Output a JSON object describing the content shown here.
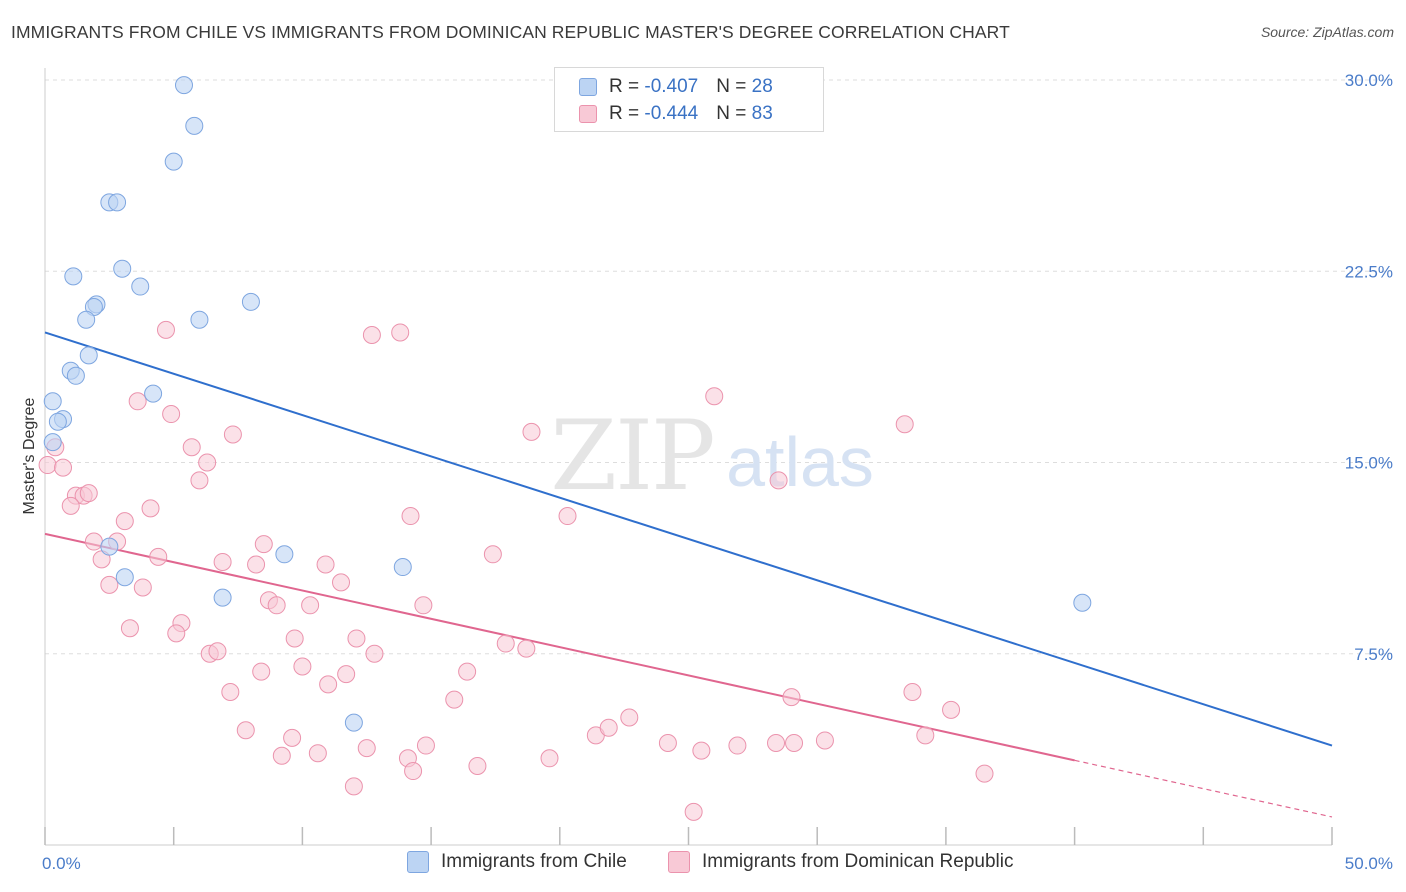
{
  "header": {
    "title": "IMMIGRANTS FROM CHILE VS IMMIGRANTS FROM DOMINICAN REPUBLIC MASTER'S DEGREE CORRELATION CHART",
    "source": "Source: ZipAtlas.com"
  },
  "watermark": {
    "zip": "ZIP",
    "atlas": "atlas"
  },
  "legend": {
    "chile": {
      "r_label": "R = ",
      "r_value": "-0.407",
      "n_label": "N = ",
      "n_value": "28"
    },
    "dominican": {
      "r_label": "R = ",
      "r_value": "-0.444",
      "n_label": "N = ",
      "n_value": "83"
    }
  },
  "bottom_legend": {
    "chile": "Immigrants from Chile",
    "dominican": "Immigrants from Dominican Republic"
  },
  "colors": {
    "chile_fill": "#bcd4f3",
    "chile_stroke": "#7ea6e0",
    "chile_line": "#2f6fcd",
    "dominican_fill": "#f8c9d6",
    "dominican_stroke": "#eb93ad",
    "dominican_line": "#e0668f",
    "grid": "#dddddd",
    "tick_text": "#4a7cc9"
  },
  "chart_data": {
    "type": "scatter",
    "title": "IMMIGRANTS FROM CHILE VS IMMIGRANTS FROM DOMINICAN REPUBLIC MASTER'S DEGREE CORRELATION CHART",
    "xlabel": "",
    "ylabel": "Master's Degree",
    "xlim": [
      0,
      50
    ],
    "ylim": [
      0,
      31
    ],
    "x_tick_labels": [
      {
        "value": 0,
        "label": "0.0%"
      },
      {
        "value": 50,
        "label": "50.0%"
      }
    ],
    "y_tick_labels": [
      {
        "value": 7.5,
        "label": "7.5%"
      },
      {
        "value": 15,
        "label": "15.0%"
      },
      {
        "value": 22.5,
        "label": "22.5%"
      },
      {
        "value": 30,
        "label": "30.0%"
      }
    ],
    "x_minor_ticks": [
      5,
      10,
      15,
      20,
      25,
      30,
      35,
      40,
      45
    ],
    "grid": true,
    "legend_position": "top-center",
    "series": [
      {
        "name": "Immigrants from Chile",
        "R": -0.407,
        "N": 28,
        "trend": {
          "x1": 0,
          "y1": 20.1,
          "x2": 50,
          "y2": 3.9,
          "dash_from_x": null
        },
        "points": [
          [
            5.4,
            29.8
          ],
          [
            5.8,
            28.2
          ],
          [
            5.0,
            26.8
          ],
          [
            2.5,
            25.2
          ],
          [
            2.8,
            25.2
          ],
          [
            3.0,
            22.6
          ],
          [
            1.1,
            22.3
          ],
          [
            3.7,
            21.9
          ],
          [
            2.0,
            21.2
          ],
          [
            1.9,
            21.1
          ],
          [
            8.0,
            21.3
          ],
          [
            1.6,
            20.6
          ],
          [
            6.0,
            20.6
          ],
          [
            1.7,
            19.2
          ],
          [
            1.0,
            18.6
          ],
          [
            1.2,
            18.4
          ],
          [
            4.2,
            17.7
          ],
          [
            0.3,
            17.4
          ],
          [
            0.7,
            16.7
          ],
          [
            0.5,
            16.6
          ],
          [
            0.3,
            15.8
          ],
          [
            2.5,
            11.7
          ],
          [
            9.3,
            11.4
          ],
          [
            3.1,
            10.5
          ],
          [
            13.9,
            10.9
          ],
          [
            6.9,
            9.7
          ],
          [
            40.3,
            9.5
          ],
          [
            12.0,
            4.8
          ]
        ]
      },
      {
        "name": "Immigrants from Dominican Republic",
        "R": -0.444,
        "N": 83,
        "trend": {
          "x1": 0,
          "y1": 12.2,
          "x2": 50,
          "y2": 1.1,
          "dash_from_x": 40
        },
        "points": [
          [
            0.4,
            15.6
          ],
          [
            0.1,
            14.9
          ],
          [
            0.7,
            14.8
          ],
          [
            1.2,
            13.7
          ],
          [
            1.5,
            13.7
          ],
          [
            1.7,
            13.8
          ],
          [
            1.0,
            13.3
          ],
          [
            3.1,
            12.7
          ],
          [
            4.1,
            13.2
          ],
          [
            1.9,
            11.9
          ],
          [
            2.8,
            11.9
          ],
          [
            2.2,
            11.2
          ],
          [
            2.5,
            10.2
          ],
          [
            3.8,
            10.1
          ],
          [
            4.4,
            11.3
          ],
          [
            4.7,
            20.2
          ],
          [
            4.9,
            16.9
          ],
          [
            3.6,
            17.4
          ],
          [
            5.7,
            15.6
          ],
          [
            6.0,
            14.3
          ],
          [
            6.3,
            15.0
          ],
          [
            7.3,
            16.1
          ],
          [
            12.7,
            20.0
          ],
          [
            13.8,
            20.1
          ],
          [
            14.2,
            12.9
          ],
          [
            18.9,
            16.2
          ],
          [
            20.3,
            12.9
          ],
          [
            17.4,
            11.4
          ],
          [
            26.0,
            17.6
          ],
          [
            33.4,
            16.5
          ],
          [
            28.5,
            14.3
          ],
          [
            6.9,
            11.1
          ],
          [
            8.2,
            11.0
          ],
          [
            8.5,
            11.8
          ],
          [
            10.9,
            11.0
          ],
          [
            11.5,
            10.3
          ],
          [
            8.7,
            9.6
          ],
          [
            9.0,
            9.4
          ],
          [
            10.3,
            9.4
          ],
          [
            14.7,
            9.4
          ],
          [
            5.3,
            8.7
          ],
          [
            5.1,
            8.3
          ],
          [
            3.3,
            8.5
          ],
          [
            6.4,
            7.5
          ],
          [
            6.7,
            7.6
          ],
          [
            9.7,
            8.1
          ],
          [
            12.1,
            8.1
          ],
          [
            12.8,
            7.5
          ],
          [
            17.9,
            7.9
          ],
          [
            18.7,
            7.7
          ],
          [
            8.4,
            6.8
          ],
          [
            10.0,
            7.0
          ],
          [
            11.0,
            6.3
          ],
          [
            11.7,
            6.7
          ],
          [
            16.4,
            6.8
          ],
          [
            7.2,
            6.0
          ],
          [
            15.9,
            5.7
          ],
          [
            7.8,
            4.5
          ],
          [
            9.6,
            4.2
          ],
          [
            9.2,
            3.5
          ],
          [
            10.6,
            3.6
          ],
          [
            12.5,
            3.8
          ],
          [
            14.1,
            3.4
          ],
          [
            14.3,
            2.9
          ],
          [
            14.8,
            3.9
          ],
          [
            16.8,
            3.1
          ],
          [
            19.6,
            3.4
          ],
          [
            21.4,
            4.3
          ],
          [
            21.9,
            4.6
          ],
          [
            22.7,
            5.0
          ],
          [
            24.2,
            4.0
          ],
          [
            25.5,
            3.7
          ],
          [
            26.9,
            3.9
          ],
          [
            28.4,
            4.0
          ],
          [
            29.1,
            4.0
          ],
          [
            29.0,
            5.8
          ],
          [
            30.3,
            4.1
          ],
          [
            33.7,
            6.0
          ],
          [
            34.2,
            4.3
          ],
          [
            35.2,
            5.3
          ],
          [
            36.5,
            2.8
          ],
          [
            12.0,
            2.3
          ],
          [
            25.2,
            1.3
          ]
        ]
      }
    ]
  }
}
